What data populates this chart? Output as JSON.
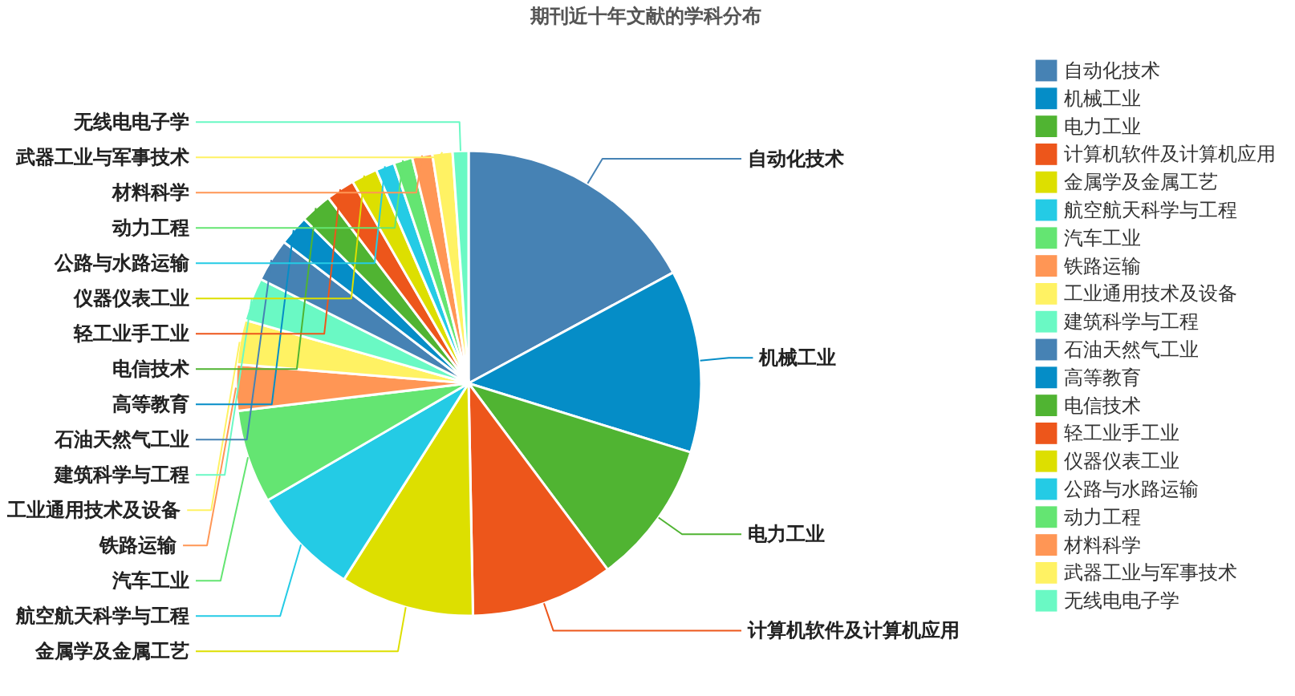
{
  "chart_data": {
    "type": "pie",
    "title": "期刊近十年文献的学科分布",
    "categories": [
      "自动化技术",
      "机械工业",
      "电力工业",
      "计算机软件及计算机应用",
      "金属学及金属工艺",
      "航空航天科学与工程",
      "汽车工业",
      "铁路运输",
      "工业通用技术及设备",
      "建筑科学与工程",
      "石油天然气工业",
      "高等教育",
      "电信技术",
      "轻工业手工业",
      "仪器仪表工业",
      "公路与水路运输",
      "动力工程",
      "材料科学",
      "武器工业与军事技术",
      "无线电电子学"
    ],
    "values": [
      17.1,
      12.7,
      10.0,
      9.9,
      9.3,
      7.6,
      6.5,
      3.2,
      3.1,
      3.0,
      3.0,
      2.1,
      2.2,
      2.0,
      1.8,
      1.3,
      1.3,
      1.4,
      1.4,
      1.1
    ],
    "colors": [
      "#4682b4",
      "#058dc7",
      "#50b432",
      "#ed561b",
      "#dddf00",
      "#24cbe5",
      "#64e572",
      "#ff9655",
      "#fff263",
      "#6af9c4",
      "#4682b4",
      "#058dc7",
      "#50b432",
      "#ed561b",
      "#dddf00",
      "#24cbe5",
      "#64e572",
      "#ff9655",
      "#fff263",
      "#6af9c4"
    ],
    "legend": "right"
  }
}
